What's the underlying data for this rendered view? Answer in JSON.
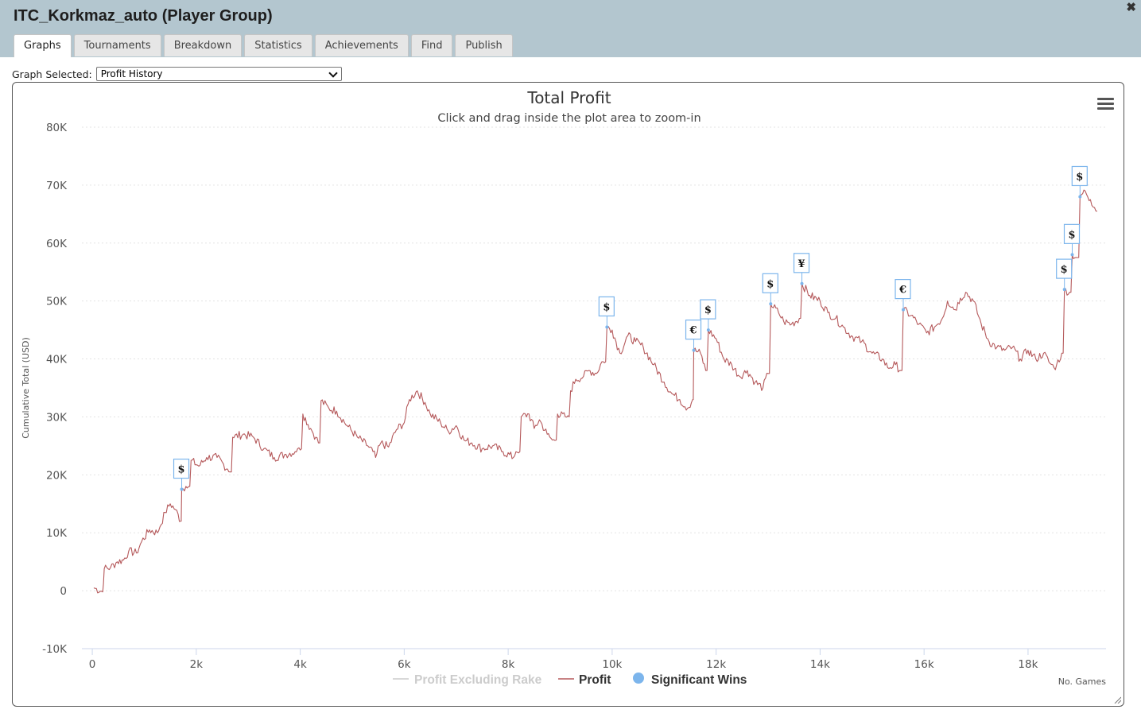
{
  "window": {
    "title": "ITC_Korkmaz_auto (Player Group)",
    "close_glyph": "✖"
  },
  "tabs": [
    "Graphs",
    "Tournaments",
    "Breakdown",
    "Statistics",
    "Achievements",
    "Find",
    "Publish"
  ],
  "active_tab": "Graphs",
  "graph_selector": {
    "label": "Graph Selected:",
    "value": "Profit History"
  },
  "chart_data": {
    "type": "line",
    "title": "Total Profit",
    "subtitle": "Click and drag inside the plot area to zoom-in",
    "xlabel": "No. Games",
    "ylabel": "Cumulative Total (USD)",
    "xlim": [
      -200,
      19500
    ],
    "ylim": [
      -10000,
      80000
    ],
    "x_ticks": [
      0,
      2000,
      4000,
      6000,
      8000,
      10000,
      12000,
      14000,
      16000,
      18000
    ],
    "x_tick_labels": [
      "0",
      "2k",
      "4k",
      "6k",
      "8k",
      "10k",
      "12k",
      "14k",
      "16k",
      "18k"
    ],
    "y_ticks": [
      -10000,
      0,
      10000,
      20000,
      30000,
      40000,
      50000,
      60000,
      70000,
      80000
    ],
    "y_tick_labels": [
      "-10K",
      "0",
      "10K",
      "20K",
      "30K",
      "40K",
      "50K",
      "60K",
      "70K",
      "80K"
    ],
    "grid": "horizontal dotted",
    "legend_position": "bottom-center",
    "series": [
      {
        "name": "Profit Excluding Rake",
        "color": "#cccccc",
        "visible": false,
        "points": []
      },
      {
        "name": "Profit",
        "color": "#b5595b",
        "visible": true,
        "points": [
          [
            30,
            500
          ],
          [
            200,
            -200
          ],
          [
            230,
            3800
          ],
          [
            350,
            4000
          ],
          [
            480,
            5000
          ],
          [
            600,
            5300
          ],
          [
            700,
            6800
          ],
          [
            850,
            6500
          ],
          [
            950,
            8500
          ],
          [
            1100,
            10500
          ],
          [
            1250,
            10000
          ],
          [
            1300,
            11000
          ],
          [
            1400,
            13500
          ],
          [
            1500,
            15000
          ],
          [
            1600,
            14000
          ],
          [
            1700,
            12000
          ],
          [
            1720,
            17500
          ],
          [
            1800,
            18000
          ],
          [
            1900,
            22500
          ],
          [
            2050,
            21500
          ],
          [
            2200,
            23000
          ],
          [
            2400,
            23000
          ],
          [
            2600,
            21000
          ],
          [
            2650,
            20500
          ],
          [
            2700,
            26500
          ],
          [
            2900,
            27000
          ],
          [
            3100,
            26500
          ],
          [
            3300,
            24500
          ],
          [
            3500,
            23000
          ],
          [
            3700,
            23500
          ],
          [
            3900,
            24000
          ],
          [
            3950,
            24500
          ],
          [
            4050,
            30500
          ],
          [
            4200,
            28000
          ],
          [
            4300,
            26500
          ],
          [
            4350,
            25500
          ],
          [
            4400,
            32800
          ],
          [
            4550,
            31500
          ],
          [
            4700,
            31000
          ],
          [
            4900,
            28500
          ],
          [
            5100,
            26500
          ],
          [
            5300,
            25000
          ],
          [
            5400,
            24000
          ],
          [
            5450,
            23000
          ],
          [
            5550,
            25500
          ],
          [
            5700,
            24800
          ],
          [
            5850,
            27800
          ],
          [
            6000,
            29000
          ],
          [
            6100,
            33000
          ],
          [
            6250,
            34500
          ],
          [
            6400,
            32500
          ],
          [
            6500,
            30500
          ],
          [
            6700,
            29000
          ],
          [
            6850,
            27500
          ],
          [
            7000,
            28500
          ],
          [
            7150,
            26000
          ],
          [
            7300,
            25500
          ],
          [
            7500,
            24500
          ],
          [
            7700,
            25000
          ],
          [
            7900,
            24000
          ],
          [
            8100,
            23000
          ],
          [
            8150,
            24000
          ],
          [
            8250,
            30000
          ],
          [
            8400,
            30500
          ],
          [
            8500,
            28000
          ],
          [
            8600,
            29500
          ],
          [
            8750,
            27000
          ],
          [
            8850,
            26000
          ],
          [
            8950,
            30500
          ],
          [
            9100,
            30000
          ],
          [
            9200,
            34500
          ],
          [
            9300,
            36500
          ],
          [
            9450,
            37000
          ],
          [
            9550,
            38000
          ],
          [
            9700,
            37500
          ],
          [
            9800,
            39500
          ],
          [
            9900,
            45500
          ],
          [
            10000,
            45000
          ],
          [
            10150,
            41000
          ],
          [
            10300,
            44000
          ],
          [
            10450,
            43000
          ],
          [
            10600,
            42000
          ],
          [
            10800,
            39000
          ],
          [
            11000,
            36000
          ],
          [
            11150,
            34000
          ],
          [
            11300,
            33000
          ],
          [
            11450,
            31500
          ],
          [
            11550,
            33000
          ],
          [
            11570,
            41500
          ],
          [
            11700,
            41000
          ],
          [
            11800,
            38000
          ],
          [
            11850,
            45000
          ],
          [
            12000,
            43500
          ],
          [
            12150,
            40000
          ],
          [
            12300,
            39000
          ],
          [
            12450,
            37000
          ],
          [
            12600,
            38000
          ],
          [
            12750,
            36000
          ],
          [
            12900,
            35000
          ],
          [
            13000,
            37500
          ],
          [
            13050,
            49500
          ],
          [
            13200,
            48000
          ],
          [
            13300,
            46500
          ],
          [
            13450,
            46000
          ],
          [
            13600,
            47000
          ],
          [
            13650,
            53000
          ],
          [
            13800,
            51000
          ],
          [
            14000,
            50000
          ],
          [
            14150,
            48000
          ],
          [
            14300,
            47000
          ],
          [
            14450,
            45500
          ],
          [
            14600,
            44000
          ],
          [
            14800,
            43000
          ],
          [
            15000,
            41000
          ],
          [
            15200,
            40000
          ],
          [
            15300,
            38500
          ],
          [
            15450,
            39000
          ],
          [
            15550,
            38000
          ],
          [
            15600,
            48500
          ],
          [
            15750,
            47500
          ],
          [
            15900,
            46000
          ],
          [
            16050,
            44500
          ],
          [
            16200,
            45500
          ],
          [
            16350,
            47000
          ],
          [
            16450,
            50000
          ],
          [
            16600,
            48500
          ],
          [
            16700,
            50500
          ],
          [
            16800,
            51500
          ],
          [
            16950,
            50000
          ],
          [
            17100,
            46000
          ],
          [
            17250,
            43000
          ],
          [
            17400,
            42000
          ],
          [
            17550,
            41500
          ],
          [
            17700,
            42000
          ],
          [
            17850,
            40000
          ],
          [
            18000,
            41500
          ],
          [
            18150,
            40000
          ],
          [
            18300,
            41000
          ],
          [
            18400,
            39500
          ],
          [
            18500,
            38500
          ],
          [
            18550,
            39000
          ],
          [
            18650,
            41000
          ],
          [
            18700,
            52000
          ],
          [
            18800,
            51500
          ],
          [
            18850,
            58000
          ],
          [
            18950,
            57500
          ],
          [
            19000,
            68000
          ],
          [
            19100,
            69000
          ],
          [
            19200,
            67500
          ],
          [
            19330,
            65500
          ]
        ]
      },
      {
        "name": "Significant Wins",
        "color": "#7cb5ec",
        "visible": true,
        "flags": [
          {
            "x": 1720,
            "y": 17500,
            "symbol": "$"
          },
          {
            "x": 9900,
            "y": 45500,
            "symbol": "$"
          },
          {
            "x": 11570,
            "y": 41500,
            "symbol": "€"
          },
          {
            "x": 11850,
            "y": 45000,
            "symbol": "$"
          },
          {
            "x": 13050,
            "y": 49500,
            "symbol": "$"
          },
          {
            "x": 13650,
            "y": 53000,
            "symbol": "¥"
          },
          {
            "x": 15600,
            "y": 48500,
            "symbol": "€"
          },
          {
            "x": 18700,
            "y": 52000,
            "symbol": "$"
          },
          {
            "x": 18850,
            "y": 58000,
            "symbol": "$"
          },
          {
            "x": 19000,
            "y": 68000,
            "symbol": "$"
          }
        ]
      }
    ]
  }
}
